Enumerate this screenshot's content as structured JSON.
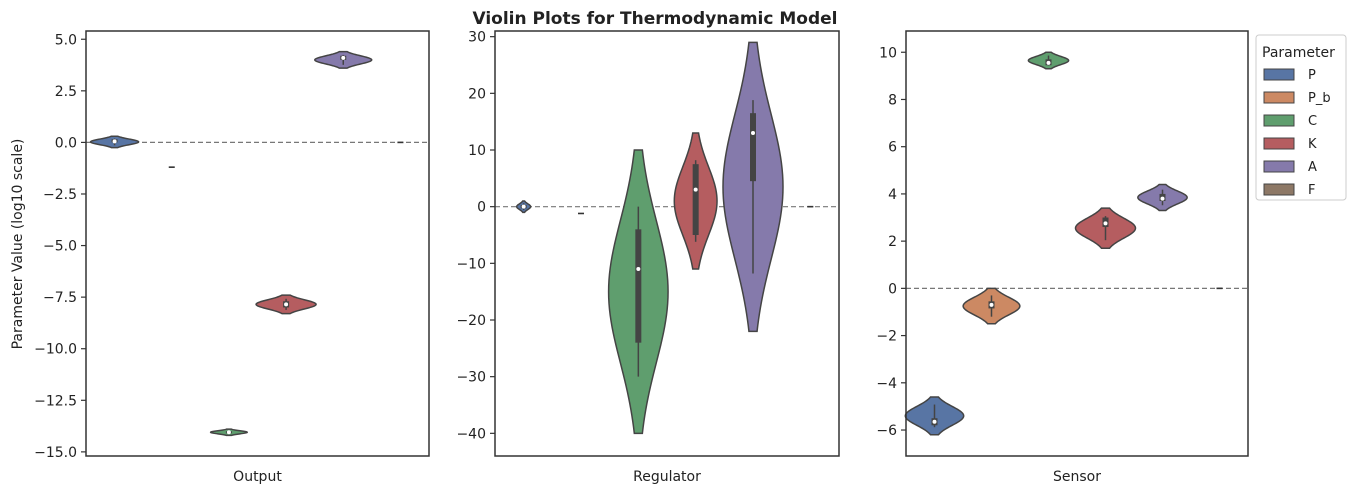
{
  "title": "Violin Plots for Thermodynamic Model",
  "ylabel": "Parameter Value (log10 scale)",
  "legend": {
    "title": "Parameter",
    "items": [
      {
        "label": "P",
        "color": "#5875a4"
      },
      {
        "label": "P_b",
        "color": "#cc8963"
      },
      {
        "label": "C",
        "color": "#5f9e6e"
      },
      {
        "label": "K",
        "color": "#b55d60"
      },
      {
        "label": "A",
        "color": "#857aab"
      },
      {
        "label": "F",
        "color": "#8d7866"
      }
    ]
  },
  "chart_data": [
    {
      "type": "violin",
      "xlabel": "Output",
      "ylim": [
        -15.2,
        5.4
      ],
      "yticks": [
        5.0,
        2.5,
        0.0,
        -2.5,
        -5.0,
        -7.5,
        -10.0,
        -12.5,
        -15.0
      ],
      "ytick_labels": [
        "5.0",
        "2.5",
        "0.0",
        "−2.5",
        "−5.0",
        "−7.5",
        "−10.0",
        "−12.5",
        "−15.0"
      ],
      "reference_line": 0,
      "series": [
        {
          "name": "P",
          "min": -0.25,
          "max": 0.3,
          "q1": 0.0,
          "q3": 0.15,
          "median": 0.05
        },
        {
          "name": "P_b",
          "min": -1.2,
          "max": -1.2,
          "q1": -1.2,
          "q3": -1.2,
          "median": -1.2
        },
        {
          "name": "C",
          "min": -14.2,
          "max": -13.9,
          "q1": -14.1,
          "q3": -14.0,
          "median": -14.05
        },
        {
          "name": "K",
          "min": -8.3,
          "max": -7.4,
          "q1": -8.0,
          "q3": -7.7,
          "median": -7.85
        },
        {
          "name": "A",
          "min": 3.6,
          "max": 4.4,
          "q1": 4.0,
          "q3": 4.2,
          "median": 4.1
        },
        {
          "name": "F",
          "min": 0.0,
          "max": 0.0,
          "q1": 0.0,
          "q3": 0.0,
          "median": 0.0
        }
      ]
    },
    {
      "type": "violin",
      "xlabel": "Regulator",
      "ylim": [
        -44,
        31
      ],
      "yticks": [
        30,
        20,
        10,
        0,
        -10,
        -20,
        -30,
        -40
      ],
      "ytick_labels": [
        "30",
        "20",
        "10",
        "0",
        "−10",
        "−20",
        "−30",
        "−40"
      ],
      "reference_line": 0,
      "series": [
        {
          "name": "P",
          "min": -1.0,
          "max": 1.0,
          "q1": -0.3,
          "q3": 0.3,
          "median": 0.0
        },
        {
          "name": "P_b",
          "min": -1.2,
          "max": -1.2,
          "q1": -1.2,
          "q3": -1.2,
          "median": -1.2
        },
        {
          "name": "C",
          "min": -40,
          "max": 10,
          "q1": -24,
          "q3": -4,
          "median": -11
        },
        {
          "name": "K",
          "min": -11,
          "max": 13,
          "q1": -5,
          "q3": 7.5,
          "median": 3
        },
        {
          "name": "A",
          "min": -22,
          "max": 29,
          "q1": 4.5,
          "q3": 16.5,
          "median": 13
        },
        {
          "name": "F",
          "min": 0.0,
          "max": 0.0,
          "q1": 0.0,
          "q3": 0.0,
          "median": 0.0
        }
      ]
    },
    {
      "type": "violin",
      "xlabel": "Sensor",
      "ylim": [
        -7.1,
        10.9
      ],
      "yticks": [
        10,
        8,
        6,
        4,
        2,
        0,
        -2,
        -4,
        -6
      ],
      "ytick_labels": [
        "10",
        "8",
        "6",
        "4",
        "2",
        "0",
        "−2",
        "−4",
        "−6"
      ],
      "reference_line": 0,
      "series": [
        {
          "name": "P",
          "min": -6.2,
          "max": -4.6,
          "q1": -5.8,
          "q3": -5.5,
          "median": -5.65
        },
        {
          "name": "P_b",
          "min": -1.5,
          "max": 0.0,
          "q1": -0.85,
          "q3": -0.55,
          "median": -0.7
        },
        {
          "name": "C",
          "min": 9.3,
          "max": 10.0,
          "q1": 9.45,
          "q3": 9.7,
          "median": 9.55
        },
        {
          "name": "K",
          "min": 1.7,
          "max": 3.4,
          "q1": 2.6,
          "q3": 3.0,
          "median": 2.75
        },
        {
          "name": "A",
          "min": 3.3,
          "max": 4.4,
          "q1": 3.7,
          "q3": 4.0,
          "median": 3.8
        },
        {
          "name": "F",
          "min": 0.0,
          "max": 0.0,
          "q1": 0.0,
          "q3": 0.0,
          "median": 0.0
        }
      ]
    }
  ]
}
